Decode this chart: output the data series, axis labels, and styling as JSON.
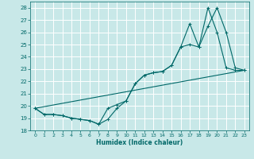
{
  "xlabel": "Humidex (Indice chaleur)",
  "background_color": "#c8e8e8",
  "grid_color": "#ffffff",
  "line_color": "#006868",
  "xlim": [
    -0.5,
    23.5
  ],
  "ylim": [
    18,
    28.5
  ],
  "xticks": [
    0,
    1,
    2,
    3,
    4,
    5,
    6,
    7,
    8,
    9,
    10,
    11,
    12,
    13,
    14,
    15,
    16,
    17,
    18,
    19,
    20,
    21,
    22,
    23
  ],
  "yticks": [
    18,
    19,
    20,
    21,
    22,
    23,
    24,
    25,
    26,
    27,
    28
  ],
  "line1_x": [
    0,
    1,
    2,
    3,
    4,
    5,
    6,
    7,
    8,
    9,
    10,
    11,
    12,
    13,
    14,
    15,
    16,
    17,
    18,
    19,
    20,
    21,
    22,
    23
  ],
  "line1_y": [
    19.8,
    19.3,
    19.3,
    19.2,
    19.0,
    18.9,
    18.8,
    18.5,
    18.9,
    19.8,
    20.4,
    21.8,
    22.5,
    22.7,
    22.8,
    23.3,
    24.8,
    26.7,
    24.8,
    28.0,
    26.0,
    23.1,
    22.9,
    22.9
  ],
  "line2_x": [
    0,
    1,
    2,
    3,
    4,
    5,
    6,
    7,
    8,
    9,
    10,
    11,
    12,
    13,
    14,
    15,
    16,
    17,
    18,
    19,
    20,
    21,
    22,
    23
  ],
  "line2_y": [
    19.8,
    19.3,
    19.3,
    19.2,
    19.0,
    18.9,
    18.8,
    18.5,
    19.8,
    20.1,
    20.4,
    21.8,
    22.5,
    22.7,
    22.8,
    23.3,
    24.8,
    25.0,
    24.8,
    26.5,
    28.0,
    26.0,
    23.1,
    22.9
  ],
  "line3_x": [
    0,
    23
  ],
  "line3_y": [
    19.8,
    22.9
  ]
}
